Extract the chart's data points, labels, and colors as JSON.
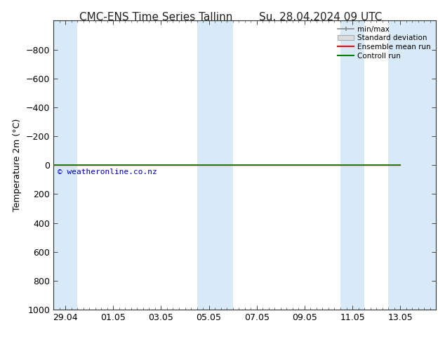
{
  "title_left": "CMC-ENS Time Series Tallinn",
  "title_right": "Su. 28.04.2024 09 UTC",
  "ylabel": "Temperature 2m (°C)",
  "ylim_top": -1000,
  "ylim_bottom": 1000,
  "yticks": [
    -800,
    -600,
    -400,
    -200,
    0,
    200,
    400,
    600,
    800,
    1000
  ],
  "xtick_labels": [
    "29.04",
    "01.05",
    "03.05",
    "05.05",
    "07.05",
    "09.05",
    "11.05",
    "13.05"
  ],
  "xtick_positions": [
    0,
    2,
    4,
    6,
    8,
    10,
    12,
    14
  ],
  "watermark": "© weatheronline.co.nz",
  "watermark_color": "#0000cc",
  "bg_color": "#ffffff",
  "plot_bg_color": "#ffffff",
  "weekend_bands": [
    {
      "x_start": -0.5,
      "x_end": 0.5
    },
    {
      "x_start": 5.5,
      "x_end": 6.5
    },
    {
      "x_start": 6.5,
      "x_end": 7.0
    },
    {
      "x_start": 11.5,
      "x_end": 12.5
    },
    {
      "x_start": 13.5,
      "x_end": 15.5
    }
  ],
  "weekend_color": "#d8eaf7",
  "legend_entries": [
    "min/max",
    "Standard deviation",
    "Ensemble mean run",
    "Controll run"
  ],
  "legend_colors": [
    "#888888",
    "#cccccc",
    "#ff0000",
    "#008000"
  ],
  "green_line_color": "#008000",
  "red_line_color": "#ff0000",
  "title_fontsize": 11,
  "axis_fontsize": 9,
  "tick_fontsize": 9,
  "figsize": [
    6.34,
    4.9
  ],
  "dpi": 100,
  "x_min": -0.5,
  "x_max": 15.5,
  "green_line_x_end": 14.0
}
